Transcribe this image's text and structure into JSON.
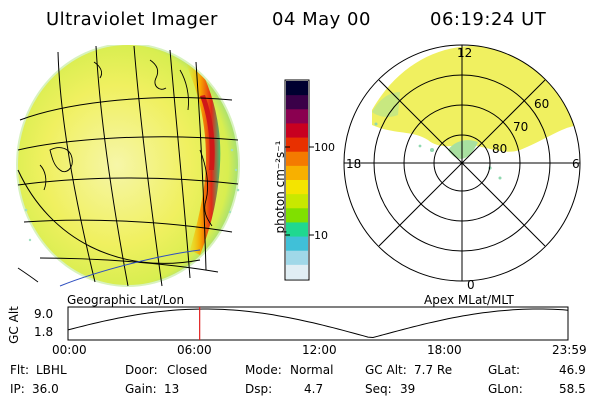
{
  "header": {
    "instrument": "Ultraviolet Imager",
    "date": "04 May 00",
    "time": "06:19:24 UT"
  },
  "colorbar": {
    "unit_label": "photon cm⁻²s⁻¹",
    "ticks": [
      "100",
      "10"
    ],
    "colors": [
      "#000030",
      "#3a0048",
      "#8a0050",
      "#c80020",
      "#e83000",
      "#f47a00",
      "#f8b000",
      "#f4e400",
      "#c8e800",
      "#80e000",
      "#20d890",
      "#40c0d8",
      "#a0d8e8",
      "#e0eef4"
    ]
  },
  "left_panel": {
    "caption": "Geographic Lat/Lon",
    "disk_color": "#f0f060"
  },
  "polar_plot": {
    "caption": "Apex MLat/MLT",
    "mlt_labels": [
      "12",
      "18",
      "6",
      "0"
    ],
    "lat_labels": [
      "60",
      "70",
      "80"
    ]
  },
  "altitude_strip": {
    "ylabel": "GC Alt",
    "ytick_top": "9.0",
    "ytick_bottom": "1.8",
    "xticks": [
      "00:00",
      "06:00",
      "12:00",
      "18:00",
      "23:59"
    ],
    "current_time_marker_hours": 6.32,
    "marker_color": "#e02020"
  },
  "status": {
    "flt_label": "Flt:",
    "flt_value": "LBHL",
    "ip_label": "IP:",
    "ip_value": "36.0",
    "door_label": "Door:",
    "door_value": "Closed",
    "gain_label": "Gain:",
    "gain_value": "13",
    "mode_label": "Mode:",
    "mode_value": "Normal",
    "dsp_label": "Dsp:",
    "dsp_value": "4.7",
    "gcalt_label": "GC Alt:",
    "gcalt_value": "7.7 Re",
    "seq_label": "Seq:",
    "seq_value": "39",
    "glat_label": "GLat:",
    "glat_value": "46.9",
    "glon_label": "GLon:",
    "glon_value": "58.5"
  }
}
